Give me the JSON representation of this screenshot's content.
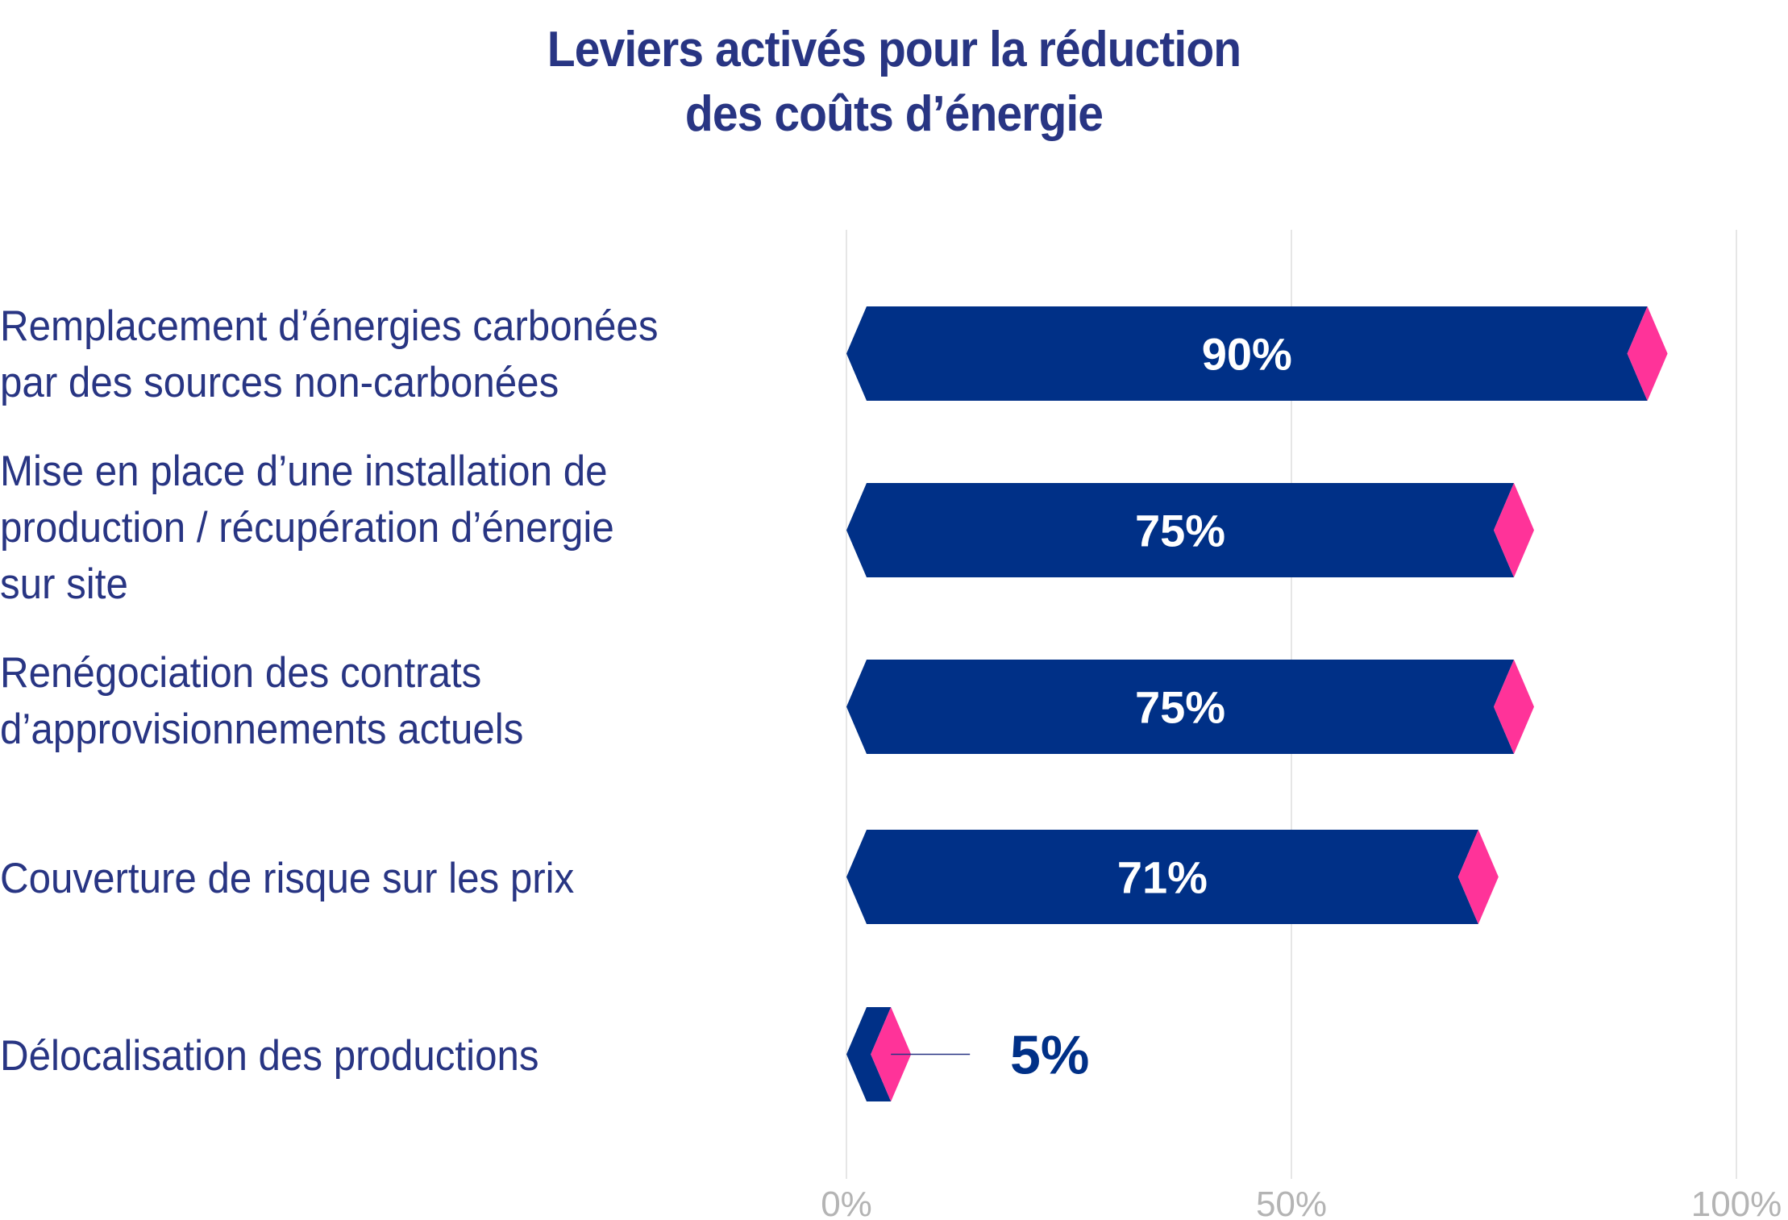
{
  "chart_data": {
    "type": "bar",
    "orientation": "horizontal",
    "title": "Leviers activés pour la réduction des coûts d’énergie",
    "title_lines": [
      "Leviers activés pour la réduction",
      "des coûts d’énergie"
    ],
    "xlabel": "",
    "ylabel": "",
    "xlim": [
      0,
      100
    ],
    "x_ticks": [
      0,
      50,
      100
    ],
    "x_tick_labels": [
      "0%",
      "50%",
      "100%"
    ],
    "grid": true,
    "legend": null,
    "categories": [
      "Remplacement d’énergies carbonées par des sources non-carbonées",
      "Mise en place d’une installation de production / récupération d’énergie sur site",
      "Renégociation des contrats d’approvisionnements actuels",
      "Couverture de risque sur les prix",
      "Délocalisation des productions"
    ],
    "category_lines": [
      [
        "Remplacement d’énergies carbonées",
        "par des sources non-carbonées"
      ],
      [
        "Mise en place d’une installation de",
        "production / récupération d’énergie",
        "sur site"
      ],
      [
        "Renégociation des contrats",
        "d’approvisionnements actuels"
      ],
      [
        "Couverture de risque sur les prix"
      ],
      [
        "Délocalisation des productions"
      ]
    ],
    "values": [
      90,
      75,
      75,
      71,
      5
    ],
    "data_labels": [
      "90%",
      "75%",
      "75%",
      "71%",
      "5%"
    ],
    "colors": {
      "bar": "#003087",
      "tip": "#ff3399",
      "text": "#283583",
      "grid": "#e6e6e6",
      "tick": "#b4b4b4"
    }
  }
}
